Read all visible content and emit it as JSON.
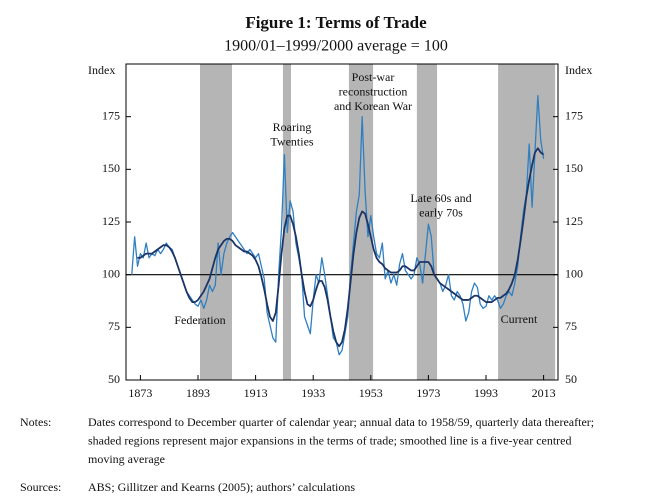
{
  "chart_data": {
    "type": "line",
    "title": "Figure 1: Terms of Trade",
    "subtitle": "1900/01–1999/2000 average = 100",
    "y_label": "Index",
    "y2_label": "Index",
    "x": [
      1870,
      1871,
      1872,
      1873,
      1874,
      1875,
      1876,
      1877,
      1878,
      1879,
      1880,
      1881,
      1882,
      1883,
      1884,
      1885,
      1886,
      1887,
      1888,
      1889,
      1890,
      1891,
      1892,
      1893,
      1894,
      1895,
      1896,
      1897,
      1898,
      1899,
      1900,
      1901,
      1902,
      1903,
      1904,
      1905,
      1906,
      1907,
      1908,
      1909,
      1910,
      1911,
      1912,
      1913,
      1914,
      1915,
      1916,
      1917,
      1918,
      1919,
      1920,
      1921,
      1922,
      1923,
      1924,
      1925,
      1926,
      1927,
      1928,
      1929,
      1930,
      1931,
      1932,
      1933,
      1934,
      1935,
      1936,
      1937,
      1938,
      1939,
      1940,
      1941,
      1942,
      1943,
      1944,
      1945,
      1946,
      1947,
      1948,
      1949,
      1950,
      1951,
      1952,
      1953,
      1954,
      1955,
      1956,
      1957,
      1958,
      1959,
      1960,
      1961,
      1962,
      1963,
      1964,
      1965,
      1966,
      1967,
      1968,
      1969,
      1970,
      1971,
      1972,
      1973,
      1974,
      1975,
      1976,
      1977,
      1978,
      1979,
      1980,
      1981,
      1982,
      1983,
      1984,
      1985,
      1986,
      1987,
      1988,
      1989,
      1990,
      1991,
      1992,
      1993,
      1994,
      1995,
      1996,
      1997,
      1998,
      1999,
      2000,
      2001,
      2002,
      2003,
      2004,
      2005,
      2006,
      2007,
      2008,
      2009,
      2010,
      2011,
      2012,
      2013
    ],
    "series": [
      {
        "name": "Terms of trade",
        "color": "#2f7fc1",
        "width": 1.3,
        "values": [
          100,
          118,
          104,
          110,
          108,
          115,
          108,
          110,
          109,
          112,
          110,
          112,
          115,
          113,
          112,
          108,
          104,
          100,
          96,
          92,
          90,
          88,
          86,
          85,
          88,
          84,
          88,
          95,
          92,
          95,
          115,
          100,
          110,
          115,
          118,
          120,
          118,
          116,
          114,
          112,
          110,
          112,
          110,
          108,
          110,
          104,
          98,
          82,
          76,
          70,
          68,
          100,
          122,
          157,
          120,
          135,
          130,
          115,
          108,
          100,
          80,
          76,
          72,
          88,
          100,
          96,
          108,
          100,
          90,
          80,
          70,
          68,
          62,
          64,
          72,
          80,
          100,
          115,
          130,
          138,
          175,
          140,
          118,
          128,
          118,
          110,
          108,
          115,
          98,
          102,
          96,
          100,
          95,
          105,
          110,
          102,
          100,
          98,
          100,
          108,
          105,
          96,
          110,
          124,
          118,
          100,
          98,
          96,
          92,
          95,
          100,
          90,
          88,
          92,
          90,
          86,
          78,
          82,
          92,
          96,
          94,
          86,
          84,
          85,
          90,
          88,
          90,
          88,
          84,
          86,
          90,
          92,
          90,
          96,
          104,
          118,
          130,
          138,
          162,
          132,
          158,
          185,
          164,
          155
        ]
      },
      {
        "name": "Five-year centred moving average",
        "color": "#1c3566",
        "width": 1.8,
        "values": [
          null,
          null,
          108,
          108,
          109,
          110,
          110,
          110,
          111,
          112,
          113,
          114,
          114,
          113,
          111,
          108,
          104,
          100,
          96,
          92,
          89,
          87,
          87,
          88,
          90,
          92,
          95,
          98,
          103,
          108,
          112,
          114,
          116,
          117,
          117,
          116,
          114,
          113,
          112,
          111,
          111,
          110,
          109,
          107,
          104,
          99,
          93,
          86,
          80,
          78,
          82,
          95,
          110,
          122,
          128,
          128,
          124,
          118,
          110,
          100,
          92,
          86,
          85,
          88,
          93,
          97,
          97,
          94,
          88,
          80,
          73,
          68,
          66,
          68,
          74,
          84,
          97,
          110,
          120,
          127,
          130,
          129,
          124,
          118,
          112,
          108,
          106,
          105,
          103,
          102,
          101,
          101,
          101,
          102,
          104,
          104,
          103,
          102,
          102,
          104,
          106,
          106,
          106,
          106,
          104,
          100,
          98,
          96,
          95,
          94,
          93,
          92,
          91,
          90,
          89,
          88,
          88,
          88,
          89,
          90,
          90,
          89,
          88,
          87,
          87,
          87,
          88,
          89,
          89,
          90,
          91,
          93,
          96,
          100,
          107,
          116,
          126,
          137,
          145,
          152,
          158,
          160,
          158,
          157
        ]
      }
    ],
    "shaded": [
      [
        1893.7,
        1904.8
      ],
      [
        1922.5,
        1925.3
      ],
      [
        1945.4,
        1953.8
      ],
      [
        1969,
        1976
      ],
      [
        1997.2,
        2017
      ]
    ],
    "shade_color": "#b5b5b5",
    "reference_line": 100,
    "xlim": [
      1868,
      2018
    ],
    "xticks": [
      1873,
      1893,
      1913,
      1933,
      1953,
      1973,
      1993,
      2013
    ],
    "ylim": [
      50,
      200
    ],
    "yticks": [
      50,
      75,
      100,
      125,
      150,
      175
    ],
    "y2lim": [
      50,
      200
    ],
    "y2ticks": [
      50,
      75,
      100,
      125,
      150,
      175
    ],
    "annotations": [
      {
        "lines": [
          "Federation"
        ]
      },
      {
        "lines": [
          "Roaring",
          "Twenties"
        ]
      },
      {
        "lines": [
          "Post-war",
          "reconstruction",
          "and Korean War"
        ]
      },
      {
        "lines": [
          "Late 60s and",
          "early 70s"
        ]
      },
      {
        "lines": [
          "Current"
        ]
      }
    ],
    "notes_label": "Notes:",
    "notes": [
      "Dates correspond to December quarter of calendar year; annual data to 1958/59, quarterly data thereafter;",
      "shaded regions represent major expansions in the terms of trade; smoothed line is a five-year centred",
      "moving average"
    ],
    "sources_label": "Sources:",
    "sources": "ABS; Gillitzer and Kearns (2005); authors’ calculations"
  }
}
